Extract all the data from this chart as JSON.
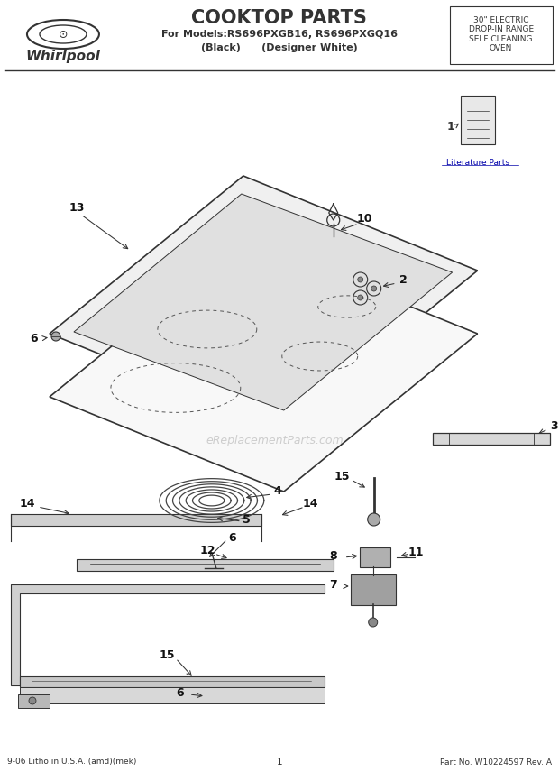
{
  "title": "COOKTOP PARTS",
  "subtitle_line1": "For Models:RS696PXGB16, RS696PXGQ16",
  "subtitle_line2": "(Black)      (Designer White)",
  "top_right_text": "30\" ELECTRIC\nDROP-IN RANGE\nSELF CLEANING\nOVEN",
  "whirlpool_text": "Whirlpool",
  "footer_left": "9-06 Litho in U.S.A. (amd)(mek)",
  "footer_center": "1",
  "footer_right": "Part No. W10224597 Rev. A",
  "watermark": "eReplacementParts.com",
  "bg_color": "#ffffff",
  "line_color": "#333333",
  "label_color": "#111111"
}
